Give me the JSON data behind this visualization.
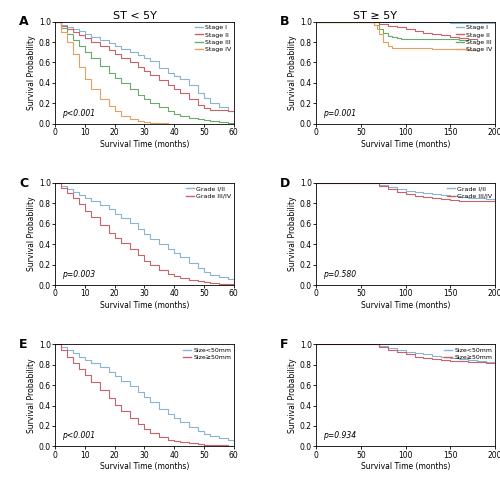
{
  "title_left": "ST < 5Y",
  "title_right": "ST ≥ 5Y",
  "panel_labels": [
    "A",
    "B",
    "C",
    "D",
    "E",
    "F"
  ],
  "colors": {
    "stage1": "#8ab4d4",
    "stage2": "#c9626a",
    "stage3": "#6aaa6a",
    "stage4": "#e8a060",
    "grade12": "#8ab4d4",
    "grade34": "#c9626a",
    "size_small": "#8ab4d4",
    "size_large": "#c9626a"
  },
  "pvalues": {
    "A": "p<0.001",
    "B": "p=0.001",
    "C": "p=0.003",
    "D": "p=0.580",
    "E": "p<0.001",
    "F": "p=0.934"
  },
  "xlim_left": [
    0,
    60
  ],
  "xlim_right": [
    0,
    200
  ],
  "xticks_left": [
    0,
    10,
    20,
    30,
    40,
    50,
    60
  ],
  "xticks_right": [
    0,
    50,
    100,
    150,
    200
  ],
  "ylim": [
    0.0,
    1.0
  ],
  "yticks": [
    0.0,
    0.2,
    0.4,
    0.6,
    0.8,
    1.0
  ],
  "xlabel": "Survival Time (months)",
  "ylabel": "Survival Probability"
}
